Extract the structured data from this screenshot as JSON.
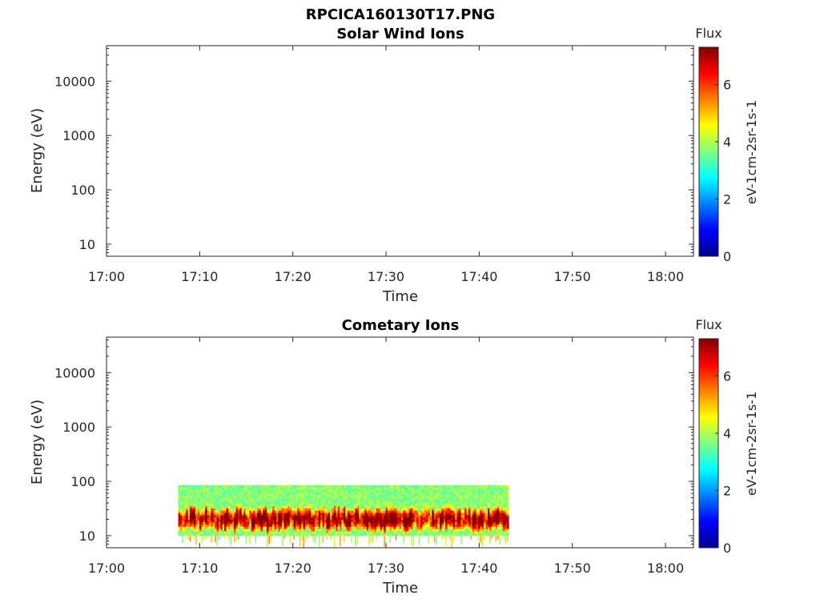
{
  "figure_title": "RPCICA160130T17.PNG",
  "colorbar_colors": [
    "#00008f",
    "#0000ff",
    "#0080ff",
    "#00ffff",
    "#80ff80",
    "#ffff00",
    "#ff8000",
    "#ff0000",
    "#800000"
  ],
  "chart_data": [
    {
      "type": "heatmap",
      "title": "Solar Wind Ions",
      "xlabel": "Time",
      "ylabel": "Energy (eV)",
      "x_ticks": [
        "17:00",
        "17:10",
        "17:20",
        "17:30",
        "17:40",
        "17:50",
        "18:00"
      ],
      "xlim": [
        "17:00",
        "18:03"
      ],
      "y_scale": "log",
      "y_ticks": [
        10,
        100,
        1000,
        10000
      ],
      "y_tick_labels": [
        "10",
        "100",
        "1000",
        "10000"
      ],
      "ylim": [
        6,
        45000
      ],
      "colorbar": {
        "title": "Flux",
        "label": "eV-1cm-2sr-1s-1",
        "range": [
          0,
          7.3
        ],
        "ticks": [
          0,
          2,
          4,
          6
        ],
        "tick_labels": [
          "0",
          "2",
          "4",
          "6"
        ],
        "colormap": "jet"
      },
      "data": []
    },
    {
      "type": "heatmap",
      "title": "Cometary Ions",
      "xlabel": "Time",
      "ylabel": "Energy (eV)",
      "x_ticks": [
        "17:00",
        "17:10",
        "17:20",
        "17:30",
        "17:40",
        "17:50",
        "18:00"
      ],
      "xlim": [
        "17:00",
        "18:03"
      ],
      "y_scale": "log",
      "y_ticks": [
        10,
        100,
        1000,
        10000
      ],
      "y_tick_labels": [
        "10",
        "100",
        "1000",
        "10000"
      ],
      "ylim": [
        6,
        45000
      ],
      "colorbar": {
        "title": "Flux",
        "label": "eV-1cm-2sr-1s-1",
        "range": [
          0,
          7.3
        ],
        "ticks": [
          0,
          2,
          4,
          6
        ],
        "tick_labels": [
          "0",
          "2",
          "4",
          "6"
        ],
        "colormap": "jet"
      },
      "data": {
        "time_start": "17:07.7",
        "time_end": "17:43.2",
        "energy_min": 10,
        "energy_max": 85,
        "peak_energy": 20,
        "peak_flux": 7
      }
    }
  ]
}
